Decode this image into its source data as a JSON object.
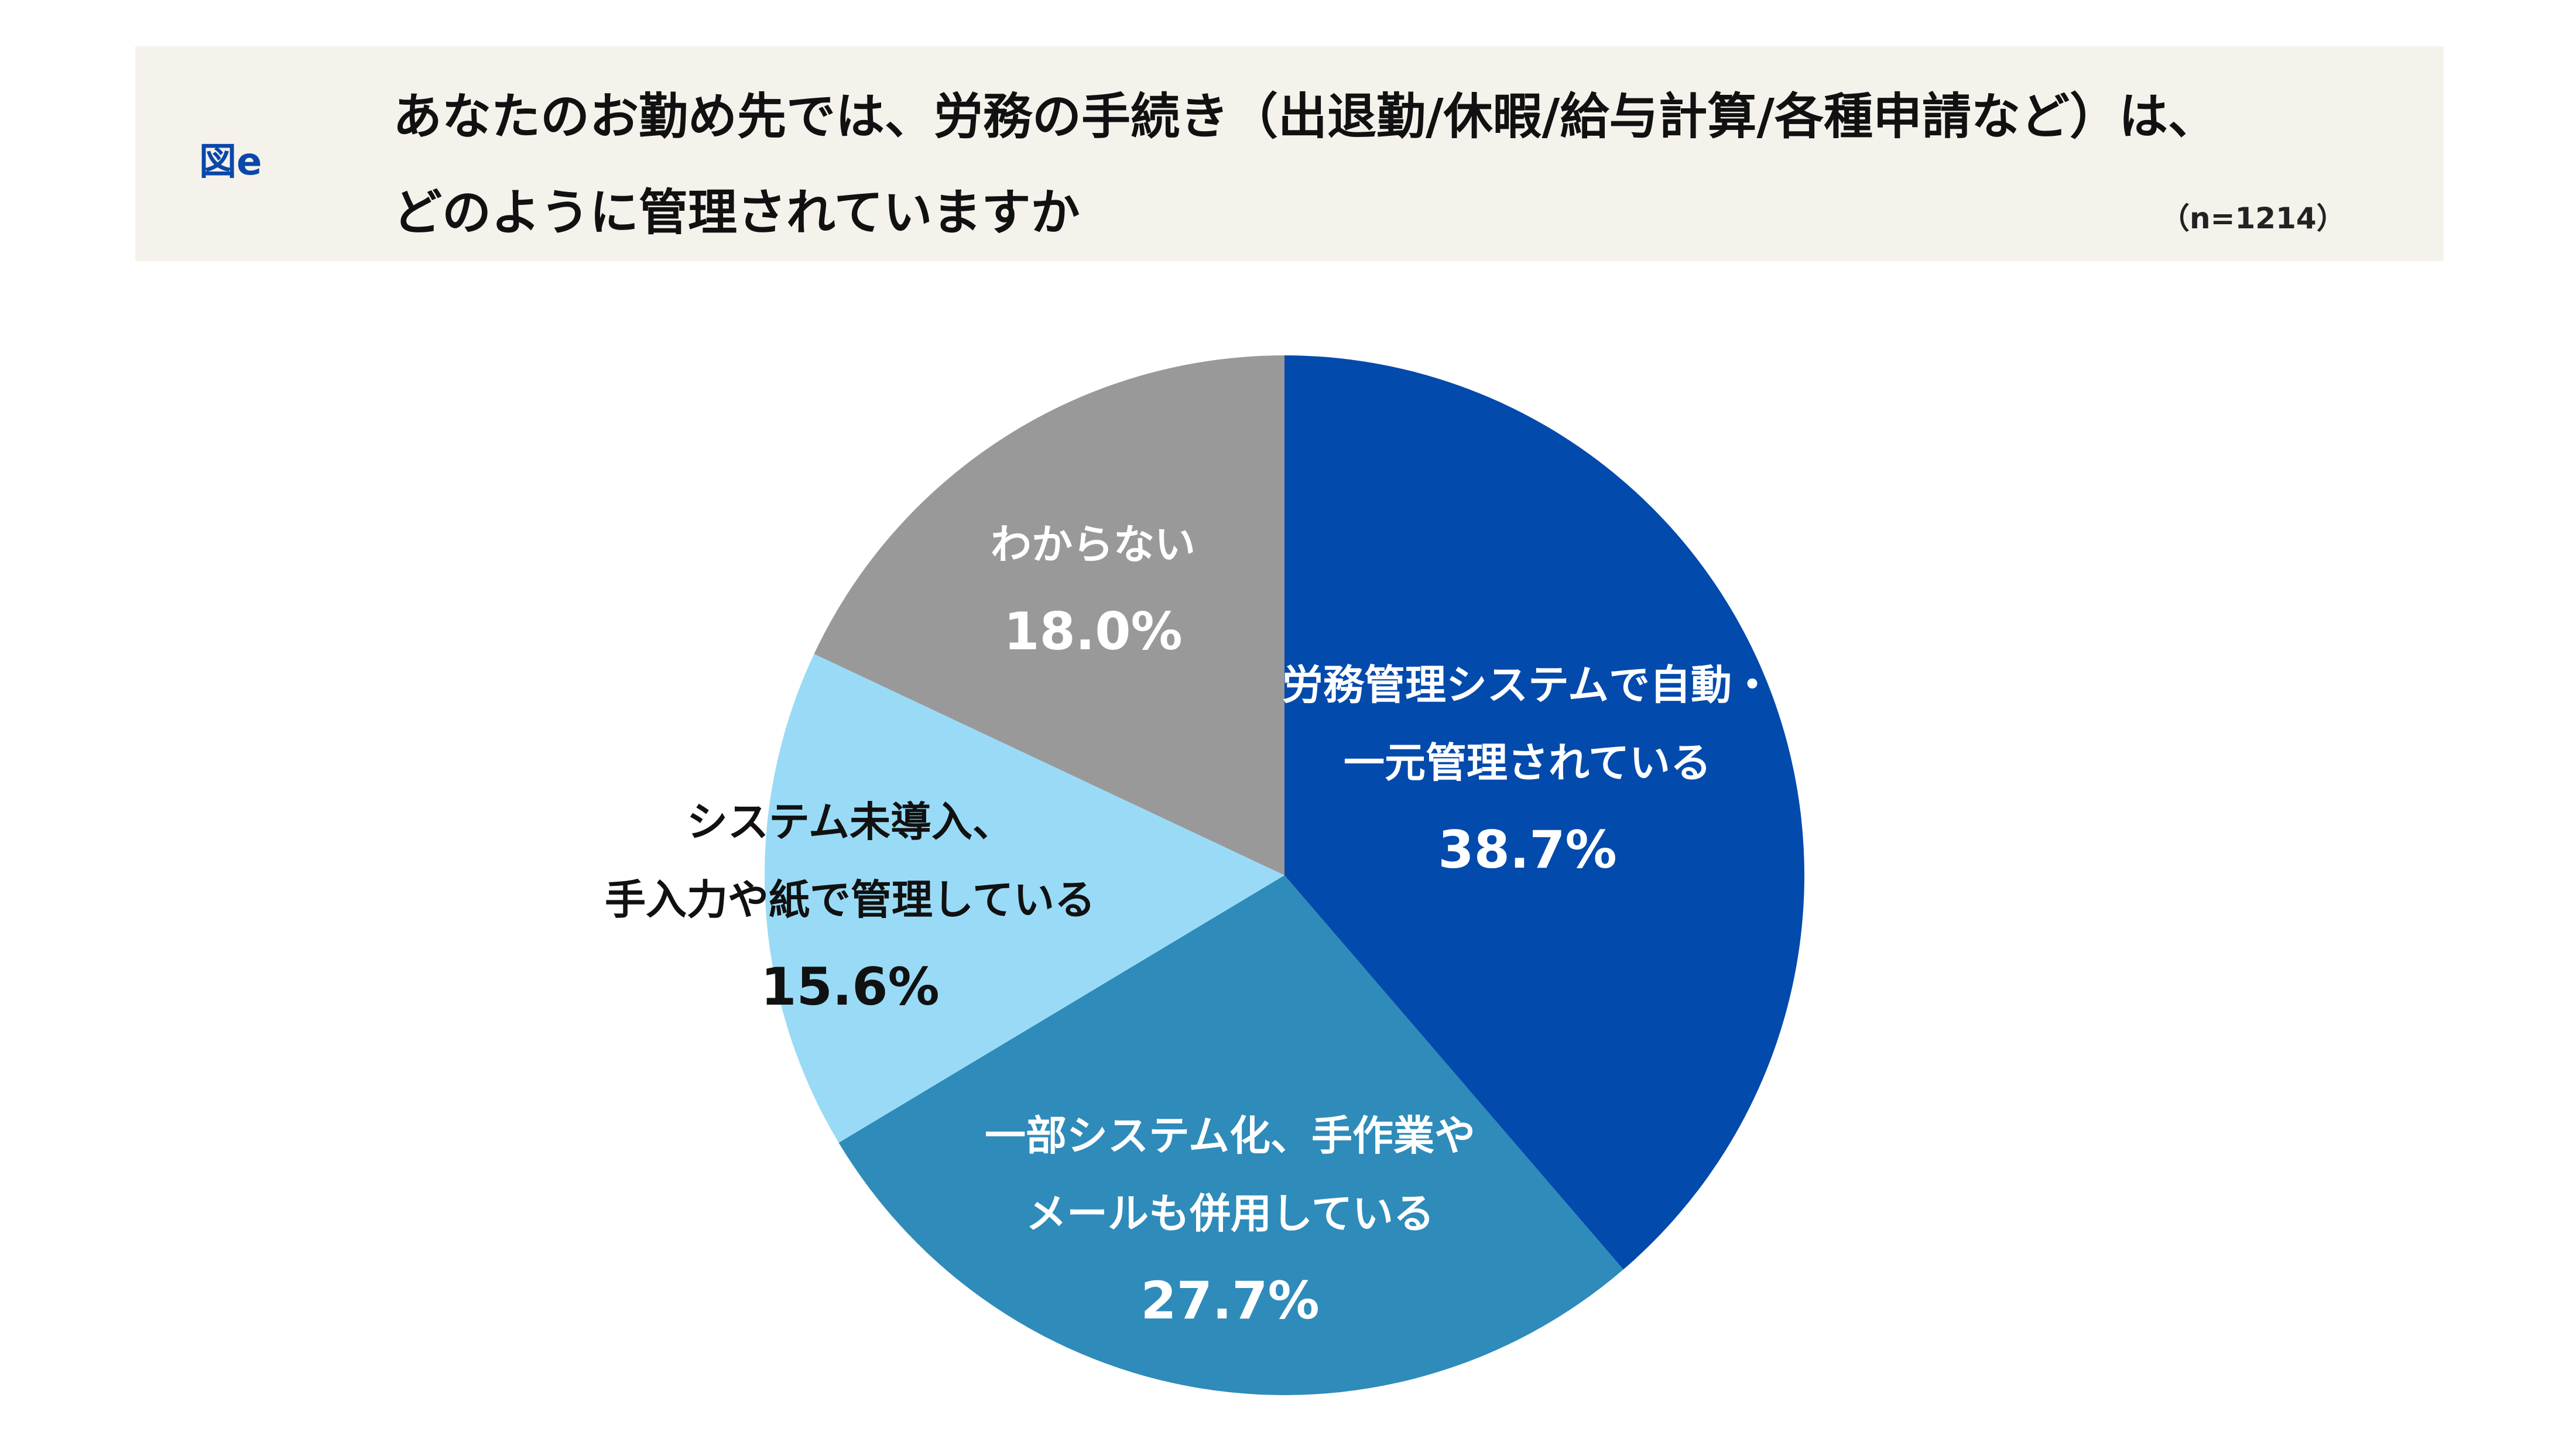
{
  "header": {
    "figure_label": "図e",
    "title_line1": "あなたのお勤め先では、労務の手続き（出退勤/休暇/給与計算/各種申請など）は、",
    "title_line2": "どのように管理されていますか",
    "sample_size": "（n=1214）"
  },
  "colors": {
    "header_background": "#f5f2ec",
    "figure_label": "#0a47a9"
  },
  "chart_data": {
    "type": "pie",
    "start": "12 o'clock",
    "direction": "clockwise",
    "slices": [
      {
        "label_lines": [
          "労務管理システムで自動・",
          "一元管理されている"
        ],
        "value": 38.7,
        "value_label": "38.7%",
        "color": "#034aad",
        "text_color": "#ffffff"
      },
      {
        "label_lines": [
          "一部システム化、手作業や",
          "メールも併用している"
        ],
        "value": 27.7,
        "value_label": "27.7%",
        "color": "#2e8bba",
        "text_color": "#ffffff"
      },
      {
        "label_lines": [
          "システム未導入、",
          "手入力や紙で管理している"
        ],
        "value": 15.6,
        "value_label": "15.6%",
        "color": "#99dbf6",
        "text_color": "#111111"
      },
      {
        "label_lines": [
          "わからない"
        ],
        "value": 18.0,
        "value_label": "18.0%",
        "color": "#999999",
        "text_color": "#ffffff"
      }
    ]
  }
}
